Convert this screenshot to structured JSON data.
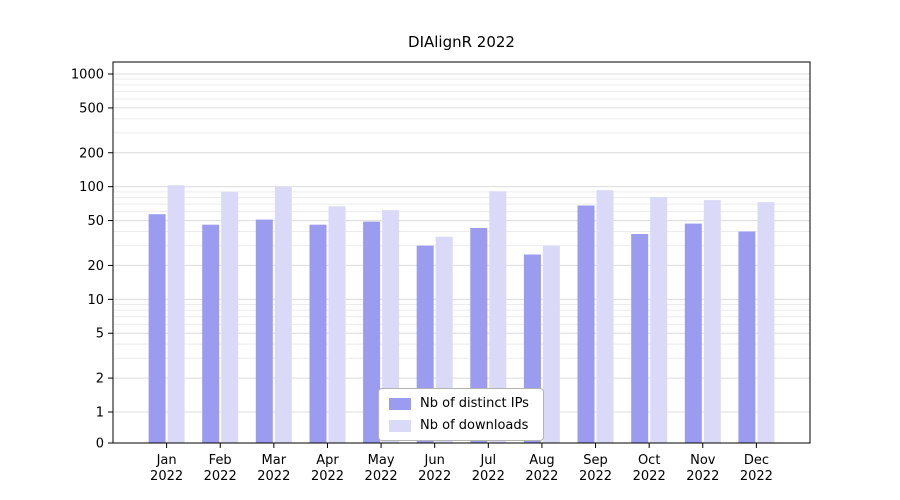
{
  "chart_data": {
    "type": "bar",
    "title": "DIAlignR 2022",
    "categories": [
      "Jan",
      "Feb",
      "Mar",
      "Apr",
      "May",
      "Jun",
      "Jul",
      "Aug",
      "Sep",
      "Oct",
      "Nov",
      "Dec"
    ],
    "category_year": "2022",
    "series": [
      {
        "name": "Nb of distinct IPs",
        "slug": "distinct-ips",
        "color": "#9b9bef",
        "values": [
          57,
          46,
          51,
          46,
          49,
          30,
          43,
          25,
          68,
          38,
          47,
          40
        ]
      },
      {
        "name": "Nb of downloads",
        "slug": "downloads",
        "color": "#dadaf8",
        "values": [
          103,
          90,
          100,
          67,
          62,
          36,
          91,
          30,
          93,
          81,
          76,
          73
        ]
      }
    ],
    "yticks": [
      0,
      1,
      2,
      5,
      10,
      20,
      50,
      100,
      200,
      500,
      1000
    ],
    "ylim": [
      0,
      1300
    ],
    "yscale": "log-with-zero",
    "grid": "horizontal",
    "legend_position": "lower-center-inside",
    "xlabel": "",
    "ylabel": ""
  }
}
